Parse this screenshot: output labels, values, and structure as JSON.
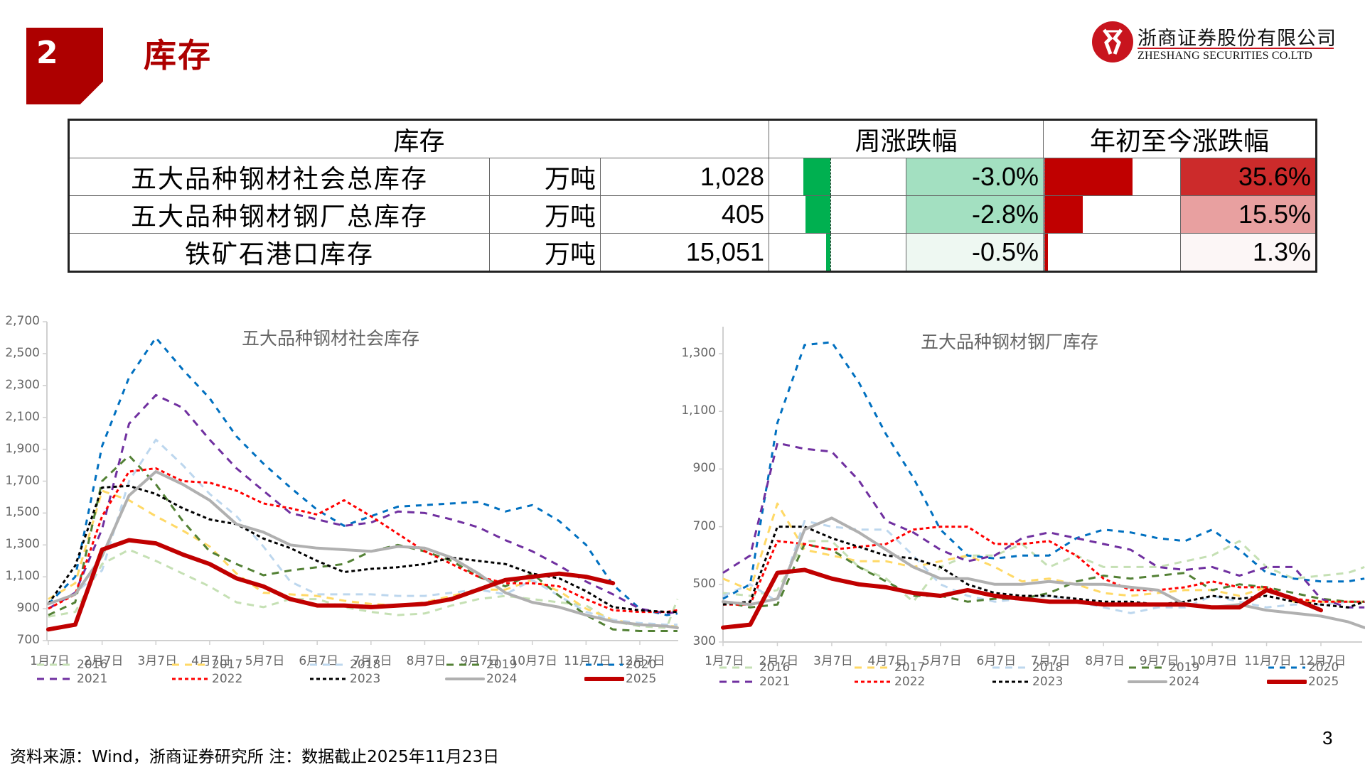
{
  "header": {
    "section_number": "2",
    "title": "库存",
    "logo_cn": "浙商证券股份有限公司",
    "logo_en": "ZHESHANG SECURITIES CO.LTD"
  },
  "table": {
    "headers": {
      "inventory": "库存",
      "weekly": "周涨跌幅",
      "ytd": "年初至今涨跌幅"
    },
    "rows": [
      {
        "name": "五大品种钢材社会总库存",
        "unit": "万吨",
        "value": "1,028",
        "weekly": "-3.0%",
        "weekly_num": -3.0,
        "ytd": "35.6%",
        "ytd_num": 35.6,
        "weekly_bg": "#a3e0c1",
        "ytd_bg": "#cc2b2b"
      },
      {
        "name": "五大品种钢材钢厂总库存",
        "unit": "万吨",
        "value": "405",
        "weekly": "-2.8%",
        "weekly_num": -2.8,
        "ytd": "15.5%",
        "ytd_num": 15.5,
        "weekly_bg": "#a3e0c1",
        "ytd_bg": "#e8a0a0"
      },
      {
        "name": "铁矿石港口库存",
        "unit": "万吨",
        "value": "15,051",
        "weekly": "-0.5%",
        "weekly_num": -0.5,
        "ytd": "1.3%",
        "ytd_num": 1.3,
        "weekly_bg": "#eef8f2",
        "ytd_bg": "#fcf6f6"
      }
    ],
    "colors": {
      "neg_bar": "#00b050",
      "pos_bar": "#c00000"
    }
  },
  "legend": {
    "series": [
      {
        "year": "2016",
        "color": "#c5e0b4",
        "dash": "10,8",
        "width": 3
      },
      {
        "year": "2017",
        "color": "#ffd966",
        "dash": "10,8",
        "width": 3
      },
      {
        "year": "2018",
        "color": "#bdd7ee",
        "dash": "10,8",
        "width": 3
      },
      {
        "year": "2019",
        "color": "#538135",
        "dash": "10,8",
        "width": 3
      },
      {
        "year": "2020",
        "color": "#0070c0",
        "dash": "8,8",
        "width": 3
      },
      {
        "year": "2021",
        "color": "#7030a0",
        "dash": "10,8",
        "width": 3
      },
      {
        "year": "2022",
        "color": "#ff0000",
        "dash": "5,4",
        "width": 3
      },
      {
        "year": "2023",
        "color": "#000000",
        "dash": "5,4",
        "width": 3
      },
      {
        "year": "2024",
        "color": "#b0b0b0",
        "dash": "",
        "width": 4
      },
      {
        "year": "2025",
        "color": "#c00000",
        "dash": "",
        "width": 6
      }
    ]
  },
  "chart_data": [
    {
      "type": "line",
      "title": "五大品种钢材社会库存",
      "xlabel": "",
      "ylabel": "",
      "ylim": [
        700,
        2700
      ],
      "yticks": [
        "2,700",
        "2,500",
        "2,300",
        "2,100",
        "1,900",
        "1,700",
        "1,500",
        "1,300",
        "1,100",
        "900",
        "700"
      ],
      "categories": [
        "1月7日",
        "2月7日",
        "3月7日",
        "4月7日",
        "5月7日",
        "6月7日",
        "7月7日",
        "8月7日",
        "9月7日",
        "10月7日",
        "11月7日",
        "12月7日"
      ],
      "x": [
        0,
        0.5,
        1,
        1.5,
        2,
        2.5,
        3,
        3.5,
        4,
        4.5,
        5,
        5.5,
        6,
        6.5,
        7,
        7.5,
        8,
        8.5,
        9,
        9.5,
        10,
        10.5,
        11,
        11.5,
        11.7
      ],
      "series": [
        {
          "name": "2016",
          "values": [
            850,
            880,
            1180,
            1270,
            1200,
            1120,
            1040,
            940,
            910,
            960,
            960,
            910,
            880,
            860,
            870,
            920,
            960,
            980,
            960,
            940,
            920,
            820,
            790,
            780,
            960
          ]
        },
        {
          "name": "2017",
          "values": [
            960,
            1060,
            1640,
            1580,
            1480,
            1390,
            1290,
            1120,
            1000,
            990,
            980,
            950,
            930,
            920,
            940,
            980,
            1020,
            1020,
            1080,
            1010,
            900,
            830,
            800,
            790,
            790
          ]
        },
        {
          "name": "2018",
          "values": [
            900,
            1000,
            1140,
            1700,
            1960,
            1800,
            1620,
            1480,
            1290,
            1070,
            990,
            990,
            990,
            980,
            980,
            1000,
            1020,
            990,
            1080,
            980,
            880,
            830,
            810,
            800,
            800
          ]
        },
        {
          "name": "2019",
          "values": [
            860,
            940,
            1700,
            1860,
            1680,
            1450,
            1260,
            1180,
            1110,
            1140,
            1160,
            1180,
            1260,
            1300,
            1260,
            1200,
            1100,
            1040,
            1120,
            980,
            860,
            770,
            760,
            760,
            760
          ]
        },
        {
          "name": "2020",
          "values": [
            930,
            1100,
            1920,
            2350,
            2600,
            2400,
            2220,
            1980,
            1810,
            1660,
            1520,
            1420,
            1480,
            1540,
            1550,
            1560,
            1570,
            1510,
            1550,
            1450,
            1300,
            1050,
            900,
            860,
            870
          ]
        },
        {
          "name": "2021",
          "values": [
            900,
            1000,
            1400,
            2060,
            2240,
            2160,
            1960,
            1780,
            1640,
            1500,
            1460,
            1420,
            1440,
            1510,
            1500,
            1460,
            1410,
            1330,
            1260,
            1170,
            1070,
            990,
            900,
            870,
            880
          ]
        },
        {
          "name": "2022",
          "values": [
            900,
            990,
            1480,
            1760,
            1780,
            1700,
            1690,
            1640,
            1560,
            1530,
            1490,
            1580,
            1480,
            1370,
            1260,
            1180,
            1100,
            1060,
            1060,
            1040,
            960,
            890,
            880,
            880,
            890
          ]
        },
        {
          "name": "2023",
          "values": [
            930,
            1170,
            1660,
            1670,
            1620,
            1530,
            1460,
            1430,
            1340,
            1280,
            1200,
            1130,
            1150,
            1160,
            1180,
            1220,
            1200,
            1180,
            1120,
            1090,
            1010,
            910,
            890,
            880,
            880
          ]
        },
        {
          "name": "2024",
          "values": [
            930,
            990,
            1230,
            1610,
            1760,
            1680,
            1580,
            1430,
            1380,
            1300,
            1280,
            1270,
            1260,
            1290,
            1280,
            1220,
            1120,
            1000,
            940,
            910,
            860,
            820,
            800,
            790,
            780
          ]
        },
        {
          "name": "2025",
          "values": [
            770,
            800,
            1270,
            1330,
            1310,
            1240,
            1180,
            1090,
            1040,
            960,
            920,
            920,
            910,
            920,
            930,
            960,
            1020,
            1080,
            1100,
            1120,
            1100,
            1060,
            null,
            null,
            null
          ]
        }
      ]
    },
    {
      "type": "line",
      "title": "五大品种钢材钢厂库存",
      "xlabel": "",
      "ylabel": "",
      "ylim": [
        300,
        1400
      ],
      "yticks": [
        "1,300",
        "1,100",
        "900",
        "700",
        "500",
        "300"
      ],
      "categories": [
        "1月7日",
        "2月7日",
        "3月7日",
        "4月7日",
        "5月7日",
        "6月7日",
        "7月7日",
        "8月7日",
        "9月7日",
        "10月7日",
        "11月7日",
        "12月7日"
      ],
      "x": [
        0,
        0.5,
        1,
        1.5,
        2,
        2.5,
        3,
        3.5,
        4,
        4.5,
        5,
        5.5,
        6,
        6.5,
        7,
        7.5,
        8,
        8.5,
        9,
        9.5,
        10,
        10.5,
        11,
        11.5,
        11.8
      ],
      "series": [
        {
          "name": "2016",
          "values": [
            470,
            460,
            480,
            650,
            650,
            560,
            520,
            440,
            560,
            600,
            600,
            640,
            560,
            600,
            560,
            560,
            560,
            580,
            600,
            650,
            560,
            520,
            530,
            540,
            560
          ]
        },
        {
          "name": "2017",
          "values": [
            520,
            480,
            780,
            620,
            600,
            580,
            580,
            560,
            580,
            600,
            560,
            510,
            520,
            500,
            470,
            460,
            470,
            480,
            480,
            460,
            490,
            440,
            440,
            440,
            440
          ]
        },
        {
          "name": "2018",
          "values": [
            460,
            500,
            440,
            720,
            700,
            690,
            690,
            600,
            500,
            460,
            440,
            450,
            460,
            440,
            420,
            400,
            420,
            420,
            460,
            440,
            420,
            430,
            430,
            440,
            440
          ]
        },
        {
          "name": "2019",
          "values": [
            440,
            420,
            430,
            640,
            620,
            560,
            510,
            460,
            460,
            440,
            450,
            450,
            470,
            510,
            530,
            520,
            530,
            540,
            480,
            500,
            490,
            470,
            450,
            440,
            440
          ]
        },
        {
          "name": "2020",
          "values": [
            450,
            500,
            1060,
            1330,
            1340,
            1200,
            1020,
            870,
            690,
            600,
            590,
            600,
            600,
            660,
            690,
            680,
            660,
            650,
            690,
            620,
            540,
            520,
            510,
            510,
            520
          ]
        },
        {
          "name": "2021",
          "values": [
            540,
            600,
            990,
            970,
            960,
            860,
            720,
            680,
            620,
            580,
            600,
            660,
            680,
            660,
            640,
            620,
            560,
            550,
            560,
            530,
            560,
            560,
            450,
            420,
            420
          ]
        },
        {
          "name": "2022",
          "values": [
            430,
            430,
            650,
            640,
            620,
            630,
            640,
            690,
            700,
            700,
            640,
            640,
            650,
            600,
            520,
            480,
            480,
            490,
            510,
            490,
            490,
            450,
            440,
            440,
            440
          ]
        },
        {
          "name": "2023",
          "values": [
            430,
            440,
            700,
            700,
            660,
            630,
            600,
            590,
            560,
            500,
            470,
            460,
            460,
            450,
            440,
            440,
            430,
            440,
            460,
            450,
            460,
            440,
            430,
            420,
            440
          ]
        },
        {
          "name": "2024",
          "values": [
            440,
            430,
            450,
            690,
            730,
            680,
            620,
            560,
            520,
            520,
            500,
            500,
            510,
            500,
            500,
            490,
            480,
            430,
            420,
            430,
            410,
            400,
            390,
            370,
            350
          ]
        },
        {
          "name": "2025",
          "values": [
            350,
            360,
            540,
            550,
            520,
            500,
            490,
            470,
            460,
            480,
            460,
            450,
            440,
            440,
            430,
            430,
            430,
            430,
            420,
            420,
            480,
            450,
            410,
            null,
            null
          ]
        }
      ]
    }
  ],
  "footer": {
    "source": "资料来源：Wind，浙商证券研究所   注：数据截止2025年11月23日",
    "page": "3"
  }
}
